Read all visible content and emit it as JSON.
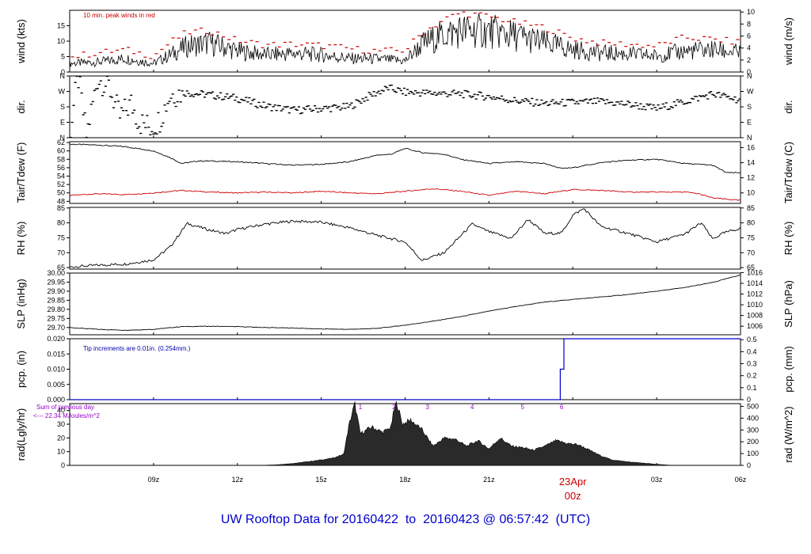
{
  "footer": {
    "title_prefix": "UW Rooftop Data for",
    "date_from": "20160422",
    "to_word": "to",
    "date_to": "20160423",
    "at_sep": "@",
    "time": "06:57:42",
    "tz": "(UTC)"
  },
  "colors": {
    "frame": "#000000",
    "peak": "#cc0000",
    "dew": "#cc0000",
    "pcp": "#0000cc",
    "note_red": "#cc0000",
    "note_blue": "#0000aa",
    "note_purple": "#9900cc",
    "title": "#0000cc"
  },
  "x_axis": {
    "range_hours": [
      6.0,
      30.0
    ],
    "tick_hours": [
      9,
      12,
      15,
      18,
      21,
      27,
      30
    ],
    "tick_labels": [
      "09z",
      "12z",
      "15z",
      "18z",
      "21z",
      "03z",
      "06z"
    ],
    "day_marker": {
      "hour": 24,
      "date_label": "23Apr",
      "time_label": "00z",
      "color": "#cc0000"
    }
  },
  "chart_data": [
    {
      "id": "wind",
      "type": "line",
      "ylabel": "wind (kts)",
      "ylabel_right": "wind (m/s)",
      "annotation": "10 min. peak winds in red",
      "ylim": [
        0,
        20
      ],
      "yticks": [
        0,
        5,
        10,
        15
      ],
      "yticks_right_values": [
        0,
        2,
        4,
        6,
        8,
        10
      ],
      "yticks_right_scale_kts_per_unit": 1.94384,
      "series": [
        {
          "role": "wind",
          "values": [
            [
              6.0,
              2.8
            ],
            [
              7.0,
              3.2
            ],
            [
              8.0,
              4.4
            ],
            [
              9.0,
              2.8
            ],
            [
              9.6,
              5.6
            ],
            [
              10.2,
              8.4
            ],
            [
              11.0,
              9.4
            ],
            [
              12.0,
              6.8
            ],
            [
              13.0,
              5.6
            ],
            [
              14.0,
              6.0
            ],
            [
              15.0,
              5.6
            ],
            [
              16.0,
              4.4
            ],
            [
              17.0,
              4.2
            ],
            [
              18.0,
              3.6
            ],
            [
              18.6,
              9.0
            ],
            [
              19.4,
              12.2
            ],
            [
              20.0,
              13.4
            ],
            [
              21.0,
              13.2
            ],
            [
              22.0,
              11.6
            ],
            [
              23.0,
              9.4
            ],
            [
              24.0,
              7.2
            ],
            [
              25.0,
              6.2
            ],
            [
              26.0,
              5.8
            ],
            [
              27.0,
              5.2
            ],
            [
              28.0,
              6.8
            ],
            [
              29.0,
              7.2
            ],
            [
              30.0,
              6.2
            ]
          ]
        },
        {
          "role": "peak",
          "values": [
            [
              6.0,
              4.8
            ],
            [
              7.0,
              6.2
            ],
            [
              8.0,
              7.2
            ],
            [
              9.0,
              5.2
            ],
            [
              9.6,
              9.6
            ],
            [
              10.2,
              12.8
            ],
            [
              11.0,
              13.4
            ],
            [
              12.0,
              10.2
            ],
            [
              13.0,
              8.8
            ],
            [
              14.0,
              9.0
            ],
            [
              15.0,
              8.6
            ],
            [
              16.0,
              7.6
            ],
            [
              17.0,
              6.8
            ],
            [
              18.0,
              7.0
            ],
            [
              18.6,
              12.6
            ],
            [
              19.4,
              17.0
            ],
            [
              20.0,
              19.2
            ],
            [
              21.0,
              18.0
            ],
            [
              22.0,
              16.0
            ],
            [
              23.0,
              14.4
            ],
            [
              24.0,
              11.0
            ],
            [
              25.0,
              9.4
            ],
            [
              26.0,
              9.0
            ],
            [
              27.0,
              8.4
            ],
            [
              28.0,
              11.2
            ],
            [
              29.0,
              10.6
            ],
            [
              30.0,
              9.6
            ]
          ]
        }
      ]
    },
    {
      "id": "dir",
      "type": "scatter",
      "ylabel": "dir.",
      "ylabel_right": "dir.",
      "ylim": [
        0,
        360
      ],
      "yticks": [
        0,
        90,
        180,
        270,
        360
      ],
      "ytick_labels": [
        "N",
        "E",
        "S",
        "W",
        "N"
      ],
      "values": [
        [
          6.0,
          20
        ],
        [
          6.3,
          360
        ],
        [
          6.6,
          10
        ],
        [
          7.0,
          345
        ],
        [
          7.4,
          300
        ],
        [
          7.8,
          120
        ],
        [
          8.2,
          200
        ],
        [
          8.5,
          90
        ],
        [
          8.9,
          60
        ],
        [
          9.2,
          100
        ],
        [
          9.6,
          250
        ],
        [
          10.0,
          265
        ],
        [
          11.0,
          250
        ],
        [
          12.0,
          230
        ],
        [
          13.0,
          185
        ],
        [
          14.0,
          160
        ],
        [
          15.0,
          170
        ],
        [
          16.0,
          180
        ],
        [
          16.8,
          250
        ],
        [
          17.4,
          290
        ],
        [
          18.0,
          265
        ],
        [
          19.0,
          260
        ],
        [
          20.0,
          255
        ],
        [
          21.0,
          240
        ],
        [
          22.0,
          215
        ],
        [
          23.0,
          200
        ],
        [
          24.0,
          205
        ],
        [
          25.0,
          210
        ],
        [
          26.0,
          195
        ],
        [
          27.0,
          170
        ],
        [
          28.0,
          210
        ],
        [
          29.0,
          255
        ],
        [
          30.0,
          220
        ]
      ]
    },
    {
      "id": "temp",
      "type": "line",
      "ylabel": "Tair/Tdew (F)",
      "ylabel_right": "Tair/Tdew (C)",
      "ylim": [
        47.5,
        62.2
      ],
      "yticks": [
        48,
        50,
        52,
        54,
        56,
        58,
        60,
        62
      ],
      "yticks_right_values": [
        10,
        12,
        14,
        16
      ],
      "series": [
        {
          "role": "air",
          "values": [
            [
              6.0,
              61.6
            ],
            [
              7.0,
              61.4
            ],
            [
              8.0,
              61.0
            ],
            [
              9.0,
              60.0
            ],
            [
              9.6,
              58.4
            ],
            [
              10.0,
              57.0
            ],
            [
              10.6,
              57.6
            ],
            [
              11.0,
              57.6
            ],
            [
              12.0,
              57.4
            ],
            [
              13.0,
              57.0
            ],
            [
              14.0,
              56.6
            ],
            [
              15.0,
              56.8
            ],
            [
              16.0,
              57.4
            ],
            [
              17.0,
              59.0
            ],
            [
              17.5,
              59.2
            ],
            [
              18.0,
              60.6
            ],
            [
              18.6,
              59.6
            ],
            [
              19.4,
              59.2
            ],
            [
              20.0,
              58.0
            ],
            [
              21.0,
              57.0
            ],
            [
              22.0,
              57.4
            ],
            [
              23.0,
              57.0
            ],
            [
              23.6,
              55.8
            ],
            [
              24.0,
              56.0
            ],
            [
              25.0,
              57.2
            ],
            [
              26.0,
              57.8
            ],
            [
              27.0,
              58.0
            ],
            [
              28.0,
              57.0
            ],
            [
              29.0,
              56.6
            ],
            [
              29.5,
              54.8
            ],
            [
              30.0,
              54.8
            ]
          ]
        },
        {
          "role": "dew",
          "values": [
            [
              6.0,
              49.4
            ],
            [
              7.0,
              49.8
            ],
            [
              8.0,
              49.6
            ],
            [
              9.0,
              50.0
            ],
            [
              10.0,
              50.6
            ],
            [
              11.0,
              50.2
            ],
            [
              12.0,
              50.0
            ],
            [
              13.0,
              50.2
            ],
            [
              14.0,
              50.0
            ],
            [
              15.0,
              50.4
            ],
            [
              16.0,
              50.0
            ],
            [
              17.0,
              49.8
            ],
            [
              18.0,
              50.4
            ],
            [
              19.0,
              51.0
            ],
            [
              20.0,
              50.4
            ],
            [
              21.0,
              49.4
            ],
            [
              22.0,
              50.4
            ],
            [
              23.0,
              49.8
            ],
            [
              24.0,
              50.8
            ],
            [
              25.0,
              50.6
            ],
            [
              26.0,
              50.2
            ],
            [
              27.0,
              50.2
            ],
            [
              28.0,
              50.2
            ],
            [
              28.5,
              49.8
            ],
            [
              29.0,
              48.8
            ],
            [
              30.0,
              48.2
            ]
          ]
        }
      ]
    },
    {
      "id": "rh",
      "type": "line",
      "ylabel": "RH (%)",
      "ylabel_right": "RH (%)",
      "ylim": [
        64.5,
        85.2
      ],
      "yticks": [
        65,
        70,
        75,
        80,
        85
      ],
      "values": [
        [
          6.0,
          65.2
        ],
        [
          7.0,
          65.8
        ],
        [
          8.0,
          66.2
        ],
        [
          9.0,
          67.6
        ],
        [
          9.6,
          72.0
        ],
        [
          10.2,
          79.8
        ],
        [
          11.0,
          77.6
        ],
        [
          11.6,
          76.4
        ],
        [
          12.0,
          77.8
        ],
        [
          13.0,
          79.6
        ],
        [
          14.0,
          80.6
        ],
        [
          15.0,
          80.2
        ],
        [
          16.0,
          78.4
        ],
        [
          17.0,
          75.8
        ],
        [
          18.0,
          73.6
        ],
        [
          18.6,
          67.4
        ],
        [
          19.4,
          70.0
        ],
        [
          20.4,
          79.6
        ],
        [
          21.0,
          77.0
        ],
        [
          21.8,
          74.8
        ],
        [
          22.4,
          81.2
        ],
        [
          23.0,
          76.4
        ],
        [
          23.6,
          76.6
        ],
        [
          24.0,
          82.6
        ],
        [
          24.4,
          84.8
        ],
        [
          25.0,
          78.8
        ],
        [
          26.0,
          76.4
        ],
        [
          27.0,
          73.6
        ],
        [
          28.0,
          76.2
        ],
        [
          28.6,
          80.0
        ],
        [
          29.0,
          74.6
        ],
        [
          29.4,
          76.6
        ],
        [
          30.0,
          78.2
        ]
      ]
    },
    {
      "id": "slp",
      "type": "line",
      "ylabel": "SLP (inHg)",
      "ylabel_right": "SLP (hPa)",
      "ylim": [
        29.66,
        30.0
      ],
      "yticks": [
        29.7,
        29.75,
        29.8,
        29.85,
        29.9,
        29.95,
        30.0
      ],
      "ytick_labels": [
        "29.70",
        "29.75",
        "29.80",
        "29.85",
        "29.90",
        "29.95",
        "30.00"
      ],
      "yticks_right_values": [
        1006,
        1008,
        1010,
        1012,
        1014,
        1016
      ],
      "values": [
        [
          6.0,
          29.7
        ],
        [
          7.0,
          29.69
        ],
        [
          8.0,
          29.685
        ],
        [
          9.0,
          29.69
        ],
        [
          10.0,
          29.705
        ],
        [
          11.0,
          29.707
        ],
        [
          12.0,
          29.705
        ],
        [
          13.0,
          29.7
        ],
        [
          14.0,
          29.697
        ],
        [
          15.0,
          29.692
        ],
        [
          16.0,
          29.69
        ],
        [
          17.0,
          29.695
        ],
        [
          18.0,
          29.713
        ],
        [
          19.0,
          29.735
        ],
        [
          20.0,
          29.76
        ],
        [
          21.0,
          29.79
        ],
        [
          22.0,
          29.817
        ],
        [
          23.0,
          29.84
        ],
        [
          24.0,
          29.855
        ],
        [
          25.0,
          29.868
        ],
        [
          26.0,
          29.882
        ],
        [
          27.0,
          29.9
        ],
        [
          28.0,
          29.92
        ],
        [
          29.0,
          29.948
        ],
        [
          30.0,
          29.99
        ]
      ]
    },
    {
      "id": "pcp",
      "type": "line",
      "ylabel": "pcp. (in)",
      "ylabel_right": "pcp. (mm)",
      "annotation": "Tip increments are 0.01in. (0.254mm.)",
      "ylim": [
        0,
        0.02
      ],
      "yticks": [
        0,
        0.005,
        0.01,
        0.015,
        0.02
      ],
      "ytick_labels": [
        "0.000",
        "0.005",
        "0.010",
        "0.015",
        "0.020"
      ],
      "yticks_right_values": [
        0,
        0.1,
        0.2,
        0.3,
        0.4,
        0.5
      ],
      "values": [
        [
          6.0,
          0
        ],
        [
          23.55,
          0
        ],
        [
          23.55,
          0.01
        ],
        [
          23.68,
          0.01
        ],
        [
          23.68,
          0.02
        ],
        [
          30.0,
          0.02
        ]
      ]
    },
    {
      "id": "rad",
      "type": "area",
      "ylabel": "rad(Lgly/hr)",
      "ylabel_right": "rad (W/m^2)",
      "annotation_top": "Sum of previous day",
      "annotation_bottom": "<--- 22.34 MJoules/m^2",
      "ylim": [
        0,
        45
      ],
      "yticks": [
        0,
        10,
        20,
        30,
        40
      ],
      "yticks_right_values": [
        0,
        100,
        200,
        300,
        400,
        500
      ],
      "yticks_right_scale_wm2_per_unit": 11.63,
      "marker_labels": [
        "1",
        "2",
        "3",
        "4",
        "5",
        "6"
      ],
      "marker_hours": [
        16.4,
        17.6,
        18.8,
        20.4,
        22.2,
        23.6
      ],
      "values": [
        [
          12.8,
          0
        ],
        [
          13.4,
          0.4
        ],
        [
          14.0,
          1.4
        ],
        [
          14.8,
          3.4
        ],
        [
          15.4,
          5.2
        ],
        [
          15.8,
          8
        ],
        [
          16.0,
          30
        ],
        [
          16.2,
          45
        ],
        [
          16.4,
          23
        ],
        [
          16.8,
          28
        ],
        [
          17.2,
          24
        ],
        [
          17.5,
          28
        ],
        [
          17.6,
          40
        ],
        [
          17.7,
          46
        ],
        [
          17.9,
          30
        ],
        [
          18.2,
          33
        ],
        [
          18.6,
          26
        ],
        [
          19.0,
          14
        ],
        [
          19.4,
          20
        ],
        [
          19.8,
          19
        ],
        [
          20.2,
          14
        ],
        [
          20.6,
          18
        ],
        [
          21.0,
          12
        ],
        [
          21.4,
          20
        ],
        [
          21.8,
          14
        ],
        [
          22.2,
          13
        ],
        [
          22.6,
          11
        ],
        [
          23.0,
          14
        ],
        [
          23.4,
          18
        ],
        [
          23.8,
          16
        ],
        [
          24.2,
          15
        ],
        [
          24.6,
          11
        ],
        [
          25.0,
          7
        ],
        [
          25.4,
          4
        ],
        [
          26.0,
          2.5
        ],
        [
          26.6,
          1.5
        ],
        [
          27.0,
          0.8
        ],
        [
          27.4,
          0.2
        ],
        [
          27.6,
          0
        ]
      ]
    }
  ]
}
